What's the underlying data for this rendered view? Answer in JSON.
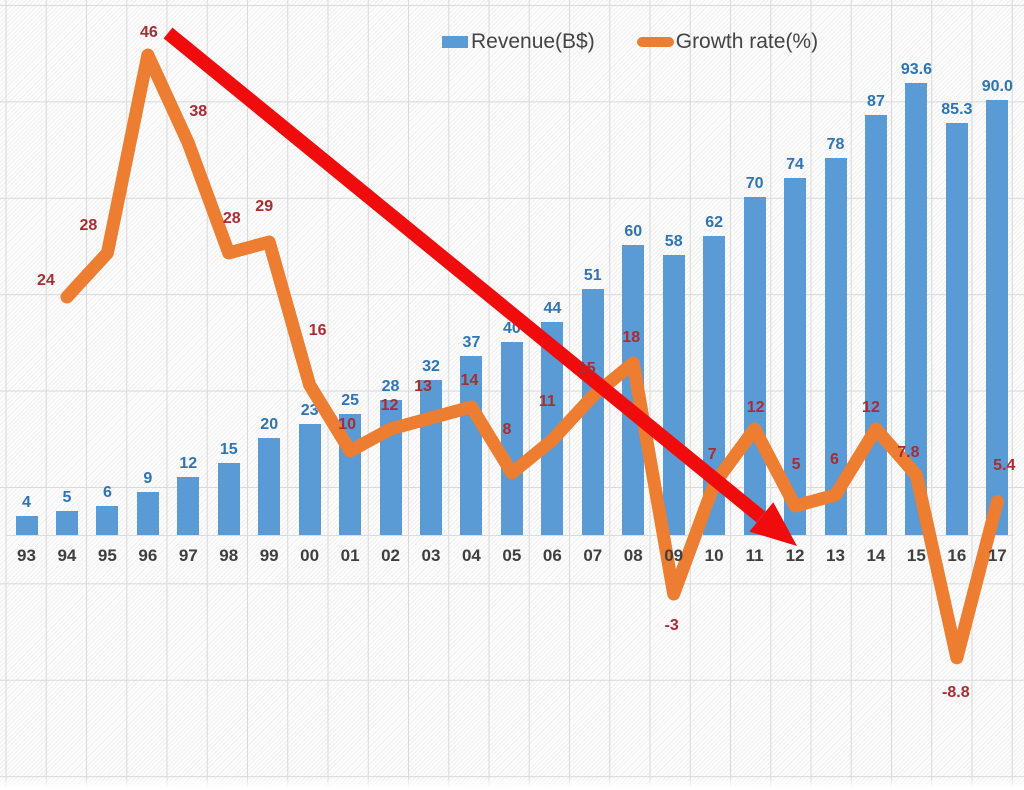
{
  "legend": [
    {
      "label": "Revenue(B$)",
      "color": "#5B9BD5",
      "type": "bar"
    },
    {
      "label": "Growth rate(%)",
      "color": "#ED7D31",
      "type": "line"
    }
  ],
  "colors": {
    "bar": "#5B9BD5",
    "bar_value_label": "#2E74B5",
    "growth_line": "#ED7D31",
    "growth_value_label": "#A82C32",
    "axis_label": "#3f3f3f",
    "trend_arrow": "#F00C0C",
    "gridline": "#d9d9d9"
  },
  "chart_data": {
    "type": "bar",
    "subtype": "combo-bar-line",
    "title": "",
    "xlabel": "",
    "ylabel": "",
    "grid": true,
    "legend_position": "top-center",
    "categories": [
      "93",
      "94",
      "95",
      "96",
      "97",
      "98",
      "99",
      "00",
      "01",
      "02",
      "03",
      "04",
      "05",
      "06",
      "07",
      "08",
      "09",
      "10",
      "11",
      "12",
      "13",
      "14",
      "15",
      "16",
      "17"
    ],
    "series": [
      {
        "name": "Revenue(B$)",
        "type": "bar",
        "color": "#5B9BD5",
        "values": [
          4,
          5,
          6,
          9,
          12,
          15,
          20,
          23,
          25,
          28,
          32,
          37,
          40,
          44,
          51,
          60,
          58,
          62,
          70,
          74,
          78,
          87,
          93.6,
          85.3,
          90
        ],
        "labels": [
          "4",
          "5",
          "6",
          "9",
          "12",
          "15",
          "20",
          "23",
          "25",
          "28",
          "32",
          "37",
          "40",
          "44",
          "51",
          "60",
          "58",
          "62",
          "70",
          "74",
          "78",
          "87",
          "93.6",
          "85.3",
          "90.0"
        ]
      },
      {
        "name": "Growth rate(%)",
        "type": "line",
        "color": "#ED7D31",
        "values": [
          null,
          24,
          28,
          46,
          38,
          28,
          29,
          16,
          10,
          12,
          13,
          14,
          8,
          11,
          15,
          18,
          -3,
          7,
          12,
          5,
          6,
          12,
          7.8,
          -8.8,
          5.4
        ],
        "labels": [
          null,
          "24",
          "28",
          "46",
          "38",
          "28",
          "29",
          "16",
          "10",
          "12",
          "13",
          "14",
          "8",
          "11",
          "15",
          "18",
          "-3",
          "7",
          "12",
          "5",
          "6",
          "12",
          "7.8",
          "-8.8",
          "5.4"
        ]
      }
    ],
    "annotations": [
      {
        "type": "arrow",
        "description": "red downward trend arrow from growth-rate peak (96, 46%) to around category 12",
        "from_category": "96",
        "to_category": "12",
        "color": "#F00C0C"
      }
    ]
  }
}
